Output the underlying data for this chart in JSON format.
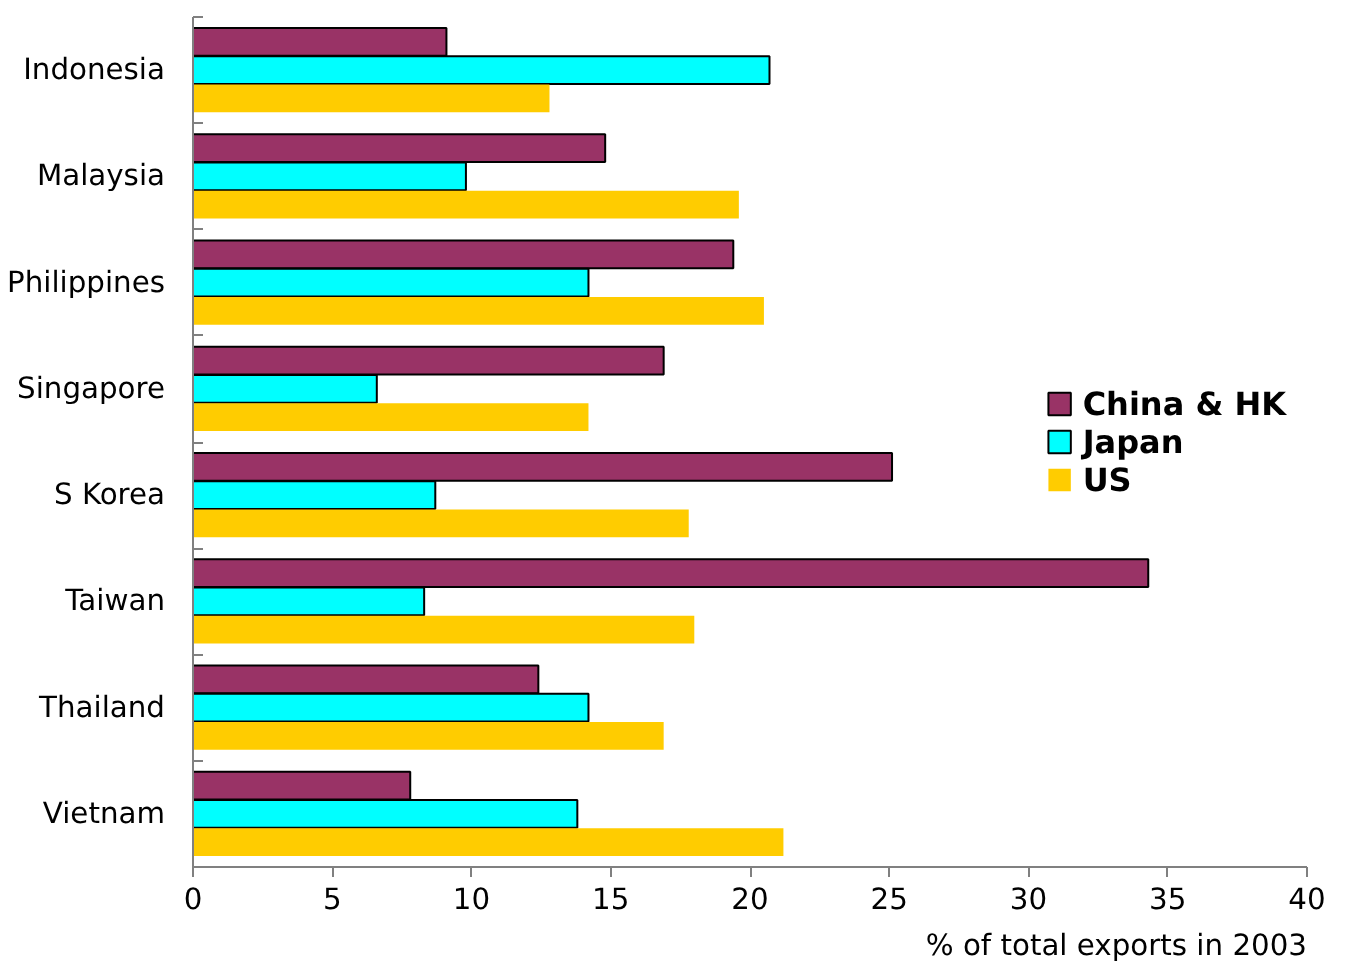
{
  "chart_data": {
    "type": "bar",
    "orientation": "horizontal",
    "xlabel": "% of total exports in 2003",
    "categories": [
      "Indonesia",
      "Malaysia",
      "Philippines",
      "Singapore",
      "S Korea",
      "Taiwan",
      "Thailand",
      "Vietnam"
    ],
    "series": [
      {
        "name": "China & HK",
        "color": "#993366",
        "values": [
          9.1,
          14.8,
          19.4,
          16.9,
          25.1,
          34.3,
          12.4,
          7.8
        ]
      },
      {
        "name": "Japan",
        "color": "#00ffff",
        "values": [
          20.7,
          9.8,
          14.2,
          6.6,
          8.7,
          8.3,
          14.2,
          13.8
        ]
      },
      {
        "name": "US",
        "color": "#ffcc00",
        "values": [
          12.8,
          19.6,
          20.5,
          14.2,
          17.8,
          18.0,
          16.9,
          21.2
        ]
      }
    ],
    "xlim": [
      0,
      40
    ],
    "xticks": [
      0,
      5,
      10,
      15,
      20,
      25,
      30,
      35,
      40
    ],
    "grid": false,
    "legend": "right"
  }
}
